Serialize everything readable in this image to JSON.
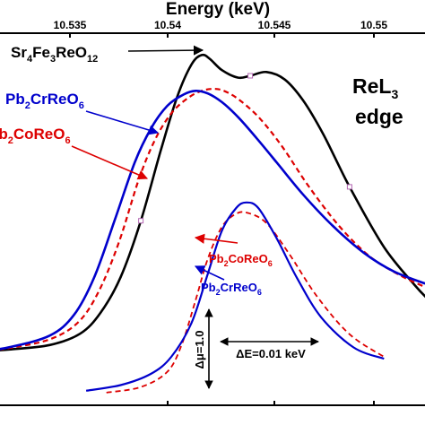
{
  "chart_data": {
    "type": "line",
    "title": "",
    "xlabel": "Energy (keV)",
    "ylabel": "",
    "x_ticks": [
      "10.535",
      "10.54",
      "10.545",
      "10.55"
    ],
    "x_tick_values": [
      10.535,
      10.54,
      10.545,
      10.55
    ],
    "xlim": [
      10.5305,
      10.5527
    ],
    "grid": false,
    "edge_label": {
      "line1_main": "ReL",
      "line1_sub": "3",
      "line2": "edge"
    },
    "label_sr4fe3reo12": {
      "parts": [
        "Sr",
        "4",
        "Fe",
        "3",
        "ReO",
        "12"
      ],
      "color": "#000000"
    },
    "label_pb2crreo6_upper": {
      "parts": [
        "Pb",
        "2",
        "CrReO",
        "6"
      ],
      "color": "#0000cc"
    },
    "label_pb2coreo6_upper": {
      "parts": [
        "Pb",
        "2",
        "CoReO",
        "6"
      ],
      "color": "#dd0000"
    },
    "label_pb2coreo6_lower": {
      "parts": [
        "Pb",
        "2",
        "CoReO",
        "6"
      ],
      "color": "#dd0000"
    },
    "label_pb2crreo6_lower": {
      "parts": [
        "Pb",
        "2",
        "CrReO",
        "6"
      ],
      "color": "#0000cc"
    },
    "scale_dmu": "Δμ=1.0",
    "scale_de": "ΔE=0.01 keV",
    "series": [
      {
        "name": "Sr4Fe3ReO12",
        "group": "upper",
        "color": "#000000",
        "dash": "solid",
        "marker_x": [
          10.5306,
          10.5385,
          10.5439,
          10.5488
        ],
        "x": [
          10.5306,
          10.532,
          10.534,
          10.5355,
          10.5365,
          10.5375,
          10.5385,
          10.5395,
          10.5403,
          10.541,
          10.5415,
          10.5419,
          10.5425,
          10.5433,
          10.5439,
          10.5447,
          10.5456,
          10.5465,
          10.5475,
          10.5488,
          10.5505,
          10.552,
          10.5527
        ],
        "y": [
          4.3,
          4.8,
          6.0,
          9.0,
          14.5,
          24.0,
          39.0,
          58.0,
          72.0,
          80.5,
          83.0,
          82.0,
          79.0,
          77.0,
          77.5,
          78.5,
          76.5,
          71.0,
          62.0,
          48.0,
          32.0,
          22.0,
          18.0
        ]
      },
      {
        "name": "Pb2CrReO6",
        "group": "upper",
        "color": "#0000cc",
        "dash": "solid",
        "x": [
          10.5306,
          10.532,
          10.534,
          10.5352,
          10.5362,
          10.5372,
          10.5382,
          10.539,
          10.5398,
          10.5406,
          10.5412,
          10.5418,
          10.5425,
          10.5433,
          10.5442,
          10.5452,
          10.5465,
          10.548,
          10.5495,
          10.551,
          10.5527
        ],
        "y": [
          4.3,
          5.4,
          8.5,
          14.0,
          24.0,
          39.0,
          54.5,
          63.5,
          69.5,
          72.5,
          73.5,
          72.8,
          70.5,
          66.5,
          61.0,
          54.5,
          46.0,
          37.5,
          30.5,
          25.5,
          22.0
        ]
      },
      {
        "name": "Pb2CoReO6",
        "group": "upper",
        "color": "#dd0000",
        "dash": "dashed",
        "x": [
          10.5306,
          10.532,
          10.534,
          10.5354,
          10.5364,
          10.5374,
          10.5384,
          10.5392,
          10.54,
          10.5408,
          10.5415,
          10.5422,
          10.5428,
          10.5435,
          10.5444,
          10.5455,
          10.5468,
          10.5483,
          10.5498,
          10.5513,
          10.5527
        ],
        "y": [
          4.3,
          5.2,
          7.5,
          12.0,
          20.0,
          33.0,
          50.0,
          60.5,
          67.5,
          71.5,
          73.5,
          74.0,
          73.0,
          70.5,
          66.0,
          58.5,
          48.0,
          37.5,
          29.5,
          24.5,
          21.0
        ]
      },
      {
        "name": "Pb2CrReO6 (difference)",
        "group": "lower",
        "color": "#0000cc",
        "dash": "solid",
        "x": [
          10.5358,
          10.5375,
          10.539,
          10.54,
          10.541,
          10.5418,
          10.5425,
          10.5432,
          10.5437,
          10.5443,
          10.5452,
          10.5462,
          10.5474,
          10.549,
          10.5505
        ],
        "y": [
          1.0,
          2.5,
          5.5,
          10.0,
          19.0,
          32.0,
          43.5,
          49.5,
          51.0,
          49.5,
          41.5,
          31.0,
          20.5,
          12.5,
          9.5
        ]
      },
      {
        "name": "Pb2CoReO6 (difference)",
        "group": "lower",
        "color": "#dd0000",
        "dash": "dashed",
        "x": [
          10.5368,
          10.5385,
          10.5398,
          10.5405,
          10.5412,
          10.5418,
          10.5425,
          10.5432,
          10.5438,
          10.5447,
          10.5458,
          10.5472,
          10.5488,
          10.5505
        ],
        "y": [
          0.5,
          2.0,
          6.0,
          13.0,
          25.0,
          36.0,
          44.5,
          48.0,
          48.2,
          45.5,
          37.5,
          26.0,
          16.0,
          10.0
        ]
      }
    ]
  }
}
